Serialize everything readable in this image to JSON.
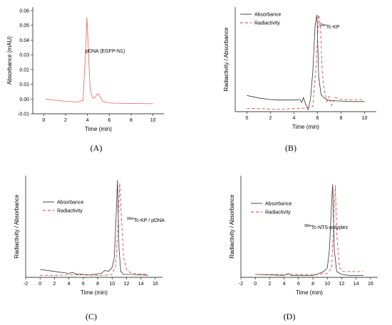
{
  "figure": {
    "panel_letters": [
      "(A)",
      "(B)",
      "(C)",
      "(D)"
    ]
  },
  "chart_data": [
    {
      "panel": "(A)",
      "type": "line",
      "xlabel": "Time (min)",
      "ylabel": "Absorbance (mAU)",
      "xlim": [
        -1,
        11
      ],
      "ylim": [
        -0.01,
        0.06
      ],
      "xticks": [
        "0",
        "2",
        "4",
        "6",
        "8",
        "10"
      ],
      "yticks": [
        "-0.01",
        "0.00",
        "0.01",
        "0.02",
        "0.03",
        "0.04",
        "0.05",
        "0.06"
      ],
      "annotations": [
        "pDNA (EGFP-N1)"
      ],
      "series": [
        {
          "color": "#e8605a",
          "dash": "solid",
          "x": [
            0.2,
            1,
            2,
            3,
            3.6,
            3.85,
            3.95,
            4.05,
            4.25,
            4.5,
            4.7,
            4.9,
            5.05,
            5.2,
            5.4,
            5.8,
            6.5,
            8,
            10
          ],
          "y": [
            0.0,
            -0.0008,
            -0.0015,
            -0.002,
            -0.001,
            0.035,
            0.0555,
            0.04,
            0.006,
            0.0005,
            0.001,
            0.0035,
            0.0032,
            0.001,
            -0.0015,
            -0.0025,
            -0.0028,
            -0.003,
            -0.0032
          ]
        }
      ]
    },
    {
      "panel": "(B)",
      "type": "line",
      "xlabel": "Time (min)",
      "ylabel": "Radiactivity / Absorbance",
      "xlim": [
        -1,
        11
      ],
      "ylim": [
        0,
        1
      ],
      "xticks": [
        "0",
        "2",
        "4",
        "6",
        "8",
        "10"
      ],
      "yticks": [],
      "annotations": [
        "99mTc-KP"
      ],
      "series": [
        {
          "name": "Absorbance",
          "color": "#333333",
          "dash": "solid",
          "x": [
            0,
            1,
            2,
            3,
            4,
            4.5,
            4.65,
            4.8,
            5.0,
            5.2,
            5.4,
            5.6,
            5.8,
            5.95,
            6.1,
            6.3,
            6.6,
            7,
            8,
            9,
            10
          ],
          "y": [
            0.16,
            0.135,
            0.12,
            0.115,
            0.115,
            0.12,
            0.09,
            0.14,
            0.07,
            0.02,
            0.12,
            0.4,
            0.86,
            0.96,
            0.35,
            0.17,
            0.13,
            0.11,
            0.105,
            0.1,
            0.1
          ]
        },
        {
          "name": "Radiactivity",
          "color": "#e03030",
          "dash": "4,3",
          "x": [
            0,
            1,
            2,
            3,
            4,
            5,
            5.6,
            5.9,
            6.1,
            6.25,
            6.4,
            6.6,
            6.8,
            7.0,
            7.2,
            7.5,
            8,
            9,
            10
          ],
          "y": [
            0.03,
            0.03,
            0.025,
            0.025,
            0.03,
            0.035,
            0.05,
            0.5,
            0.96,
            0.85,
            0.4,
            0.2,
            0.1,
            0.15,
            0.06,
            0.14,
            0.12,
            0.12,
            0.12
          ]
        }
      ]
    },
    {
      "panel": "(C)",
      "type": "line",
      "xlabel": "Time (min)",
      "ylabel": "Radiactivity / Absorbance",
      "xlim": [
        -2,
        17
      ],
      "ylim": [
        0,
        1
      ],
      "xticks": [
        "-2",
        "0",
        "2",
        "4",
        "6",
        "8",
        "10",
        "12",
        "14",
        "16"
      ],
      "yticks": [],
      "annotations": [
        "99mTc-KP / pDNA"
      ],
      "series": [
        {
          "name": "Absorbance",
          "color": "#333333",
          "dash": "solid",
          "x": [
            0,
            2,
            4,
            4.5,
            5,
            6,
            7,
            8.5,
            9,
            9.5,
            10,
            10.3,
            10.55,
            10.75,
            10.95,
            11.2,
            11.6,
            12.5,
            14,
            15
          ],
          "y": [
            0.08,
            0.06,
            0.04,
            0.05,
            0.035,
            0.03,
            0.025,
            0.04,
            0.07,
            0.06,
            0.1,
            0.2,
            0.6,
            0.99,
            0.3,
            0.06,
            0.03,
            0.03,
            0.025,
            0.02
          ]
        },
        {
          "name": "Radiactivity",
          "color": "#e03030",
          "dash": "4,3",
          "x": [
            0,
            2,
            4,
            6,
            8,
            9,
            10,
            10.5,
            10.8,
            11.05,
            11.3,
            11.6,
            12,
            12.5,
            13,
            14,
            15
          ],
          "y": [
            0.02,
            0.02,
            0.025,
            0.025,
            0.02,
            0.02,
            0.03,
            0.12,
            0.5,
            0.96,
            0.6,
            0.2,
            0.08,
            0.05,
            0.04,
            0.035,
            0.03
          ]
        }
      ]
    },
    {
      "panel": "(D)",
      "type": "line",
      "xlabel": "Time (min)",
      "ylabel": "Radiactivity / Absorbance",
      "xlim": [
        -2,
        17
      ],
      "ylim": [
        0,
        1
      ],
      "xticks": [
        "-2",
        "0",
        "2",
        "4",
        "6",
        "8",
        "10",
        "12",
        "14",
        "16"
      ],
      "yticks": [],
      "annotations": [
        "99mTc-NTS-polyplex"
      ],
      "series": [
        {
          "name": "Absorbance",
          "color": "#333333",
          "dash": "solid",
          "x": [
            0,
            2,
            4,
            4.6,
            5,
            6,
            8,
            8.5,
            9,
            9.5,
            10,
            10.3,
            10.55,
            10.75,
            10.95,
            11.3,
            12,
            13,
            14,
            15
          ],
          "y": [
            0.03,
            0.025,
            0.02,
            0.04,
            0.02,
            0.02,
            0.02,
            0.03,
            0.045,
            0.06,
            0.1,
            0.3,
            0.7,
            0.97,
            0.3,
            0.06,
            0.03,
            0.02,
            0.02,
            0.02
          ]
        },
        {
          "name": "Radiactivity",
          "color": "#e03030",
          "dash": "4,3",
          "x": [
            0,
            2,
            4,
            6,
            8,
            9,
            10,
            10.6,
            10.9,
            11.1,
            11.35,
            11.7,
            12.2,
            13,
            14,
            15
          ],
          "y": [
            0.03,
            0.03,
            0.03,
            0.03,
            0.03,
            0.035,
            0.04,
            0.1,
            0.6,
            0.96,
            0.4,
            0.1,
            0.06,
            0.06,
            0.06,
            0.06
          ]
        }
      ]
    }
  ]
}
